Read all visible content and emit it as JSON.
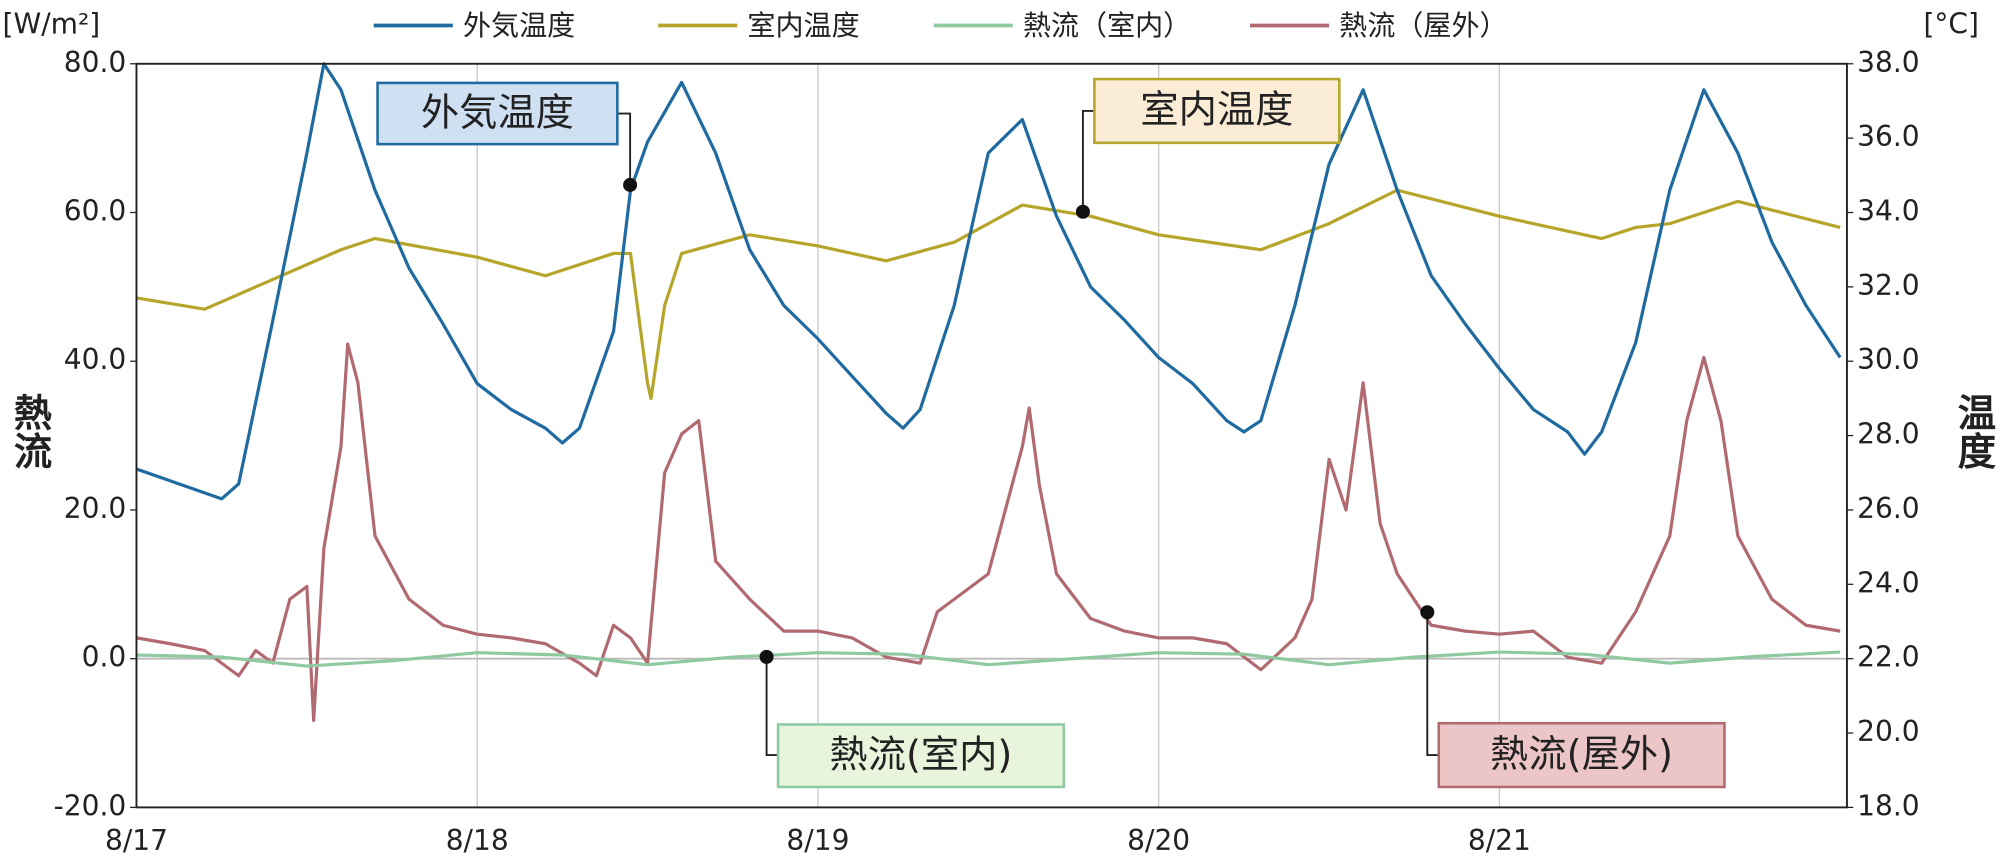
{
  "chart_data": {
    "type": "line",
    "ylabel": "熱流",
    "ylabel_unit": "[W/m²]",
    "y2label": "温度",
    "y2label_unit": "[°C]",
    "legend": "top",
    "grid": true,
    "xlim": [
      0,
      5.02
    ],
    "xticks": [
      {
        "value": 0,
        "label": "8/17"
      },
      {
        "value": 1,
        "label": "8/18"
      },
      {
        "value": 2,
        "label": "8/19"
      },
      {
        "value": 3,
        "label": "8/20"
      },
      {
        "value": 4,
        "label": "8/21"
      }
    ],
    "ylim": [
      -20,
      80
    ],
    "yticks": [
      {
        "value": -20,
        "label": "-20.0"
      },
      {
        "value": 0,
        "label": "0.0"
      },
      {
        "value": 20,
        "label": "20.0"
      },
      {
        "value": 40,
        "label": "40.0"
      },
      {
        "value": 60,
        "label": "60.0"
      },
      {
        "value": 80,
        "label": "80.0"
      }
    ],
    "y2lim": [
      18,
      38
    ],
    "y2ticks": [
      {
        "value": 18,
        "label": "18.0"
      },
      {
        "value": 20,
        "label": "20.0"
      },
      {
        "value": 22,
        "label": "22.0"
      },
      {
        "value": 24,
        "label": "24.0"
      },
      {
        "value": 26,
        "label": "26.0"
      },
      {
        "value": 28,
        "label": "28.0"
      },
      {
        "value": 30,
        "label": "30.0"
      },
      {
        "value": 32,
        "label": "32.0"
      },
      {
        "value": 34,
        "label": "34.0"
      },
      {
        "value": 36,
        "label": "36.0"
      },
      {
        "value": 38,
        "label": "38.0"
      }
    ],
    "series": [
      {
        "name": "外気温度",
        "callout": "外気温度",
        "color": "#1f6aa0",
        "axis": "y2",
        "x": [
          0,
          0.25,
          0.3,
          0.4,
          0.5,
          0.55,
          0.6,
          0.7,
          0.8,
          0.9,
          1.0,
          1.1,
          1.2,
          1.25,
          1.3,
          1.4,
          1.45,
          1.5,
          1.6,
          1.7,
          1.8,
          1.9,
          2.0,
          2.1,
          2.2,
          2.25,
          2.3,
          2.4,
          2.5,
          2.6,
          2.7,
          2.8,
          2.9,
          3.0,
          3.1,
          3.2,
          3.25,
          3.3,
          3.4,
          3.5,
          3.6,
          3.7,
          3.8,
          3.9,
          4.0,
          4.1,
          4.2,
          4.25,
          4.3,
          4.4,
          4.5,
          4.6,
          4.7,
          4.8,
          4.9,
          5.0
        ],
        "values": [
          27.1,
          26.3,
          26.7,
          31.1,
          35.6,
          38.0,
          37.3,
          34.6,
          32.5,
          31.0,
          29.4,
          28.7,
          28.2,
          27.8,
          28.2,
          30.8,
          34.6,
          35.9,
          37.5,
          35.6,
          33.0,
          31.5,
          30.6,
          29.6,
          28.6,
          28.2,
          28.7,
          31.5,
          35.6,
          36.5,
          33.9,
          32.0,
          31.1,
          30.1,
          29.4,
          28.4,
          28.1,
          28.4,
          31.5,
          35.3,
          37.3,
          34.6,
          32.3,
          31.0,
          29.8,
          28.7,
          28.1,
          27.5,
          28.1,
          30.5,
          34.6,
          37.3,
          35.6,
          33.2,
          31.5,
          30.1
        ]
      },
      {
        "name": "室内温度",
        "callout": "室内温度",
        "color": "#b5a52a",
        "axis": "y2",
        "x": [
          0,
          0.2,
          0.4,
          0.6,
          0.7,
          1.0,
          1.2,
          1.4,
          1.45,
          1.5,
          1.51,
          1.55,
          1.6,
          1.8,
          2.0,
          2.2,
          2.4,
          2.6,
          2.8,
          3.0,
          3.3,
          3.5,
          3.7,
          4.0,
          4.3,
          4.4,
          4.5,
          4.7,
          5.0
        ],
        "values": [
          31.7,
          31.4,
          32.2,
          33.0,
          33.3,
          32.8,
          32.3,
          32.9,
          32.9,
          29.4,
          29.0,
          31.5,
          32.9,
          33.4,
          33.1,
          32.7,
          33.2,
          34.2,
          33.9,
          33.4,
          33.0,
          33.7,
          34.6,
          33.9,
          33.3,
          33.6,
          33.7,
          34.3,
          33.6
        ]
      },
      {
        "name": "熱流（室内）",
        "callout": "熱流(室内)",
        "color": "#8fc9a0",
        "x": [
          0,
          0.25,
          0.5,
          0.75,
          1.0,
          1.25,
          1.5,
          1.75,
          2.0,
          2.25,
          2.5,
          2.75,
          3.0,
          3.25,
          3.5,
          3.75,
          4.0,
          4.25,
          4.5,
          4.75,
          5.0
        ],
        "values": [
          0.5,
          0.2,
          -1.0,
          -0.3,
          0.8,
          0.5,
          -0.8,
          0.2,
          0.8,
          0.6,
          -0.8,
          0.0,
          0.8,
          0.6,
          -0.8,
          0.2,
          0.9,
          0.6,
          -0.6,
          0.3,
          0.9
        ]
      },
      {
        "name": "熱流（屋外）",
        "callout": "熱流(屋外)",
        "color": "#b06a70",
        "x": [
          0,
          0.1,
          0.2,
          0.3,
          0.35,
          0.4,
          0.45,
          0.5,
          0.52,
          0.55,
          0.6,
          0.62,
          0.65,
          0.7,
          0.8,
          0.9,
          1.0,
          1.1,
          1.2,
          1.3,
          1.35,
          1.4,
          1.45,
          1.5,
          1.55,
          1.6,
          1.65,
          1.7,
          1.8,
          1.9,
          2.0,
          2.1,
          2.2,
          2.3,
          2.35,
          2.4,
          2.5,
          2.55,
          2.6,
          2.62,
          2.65,
          2.7,
          2.8,
          2.9,
          3.0,
          3.1,
          3.2,
          3.3,
          3.4,
          3.45,
          3.5,
          3.55,
          3.6,
          3.65,
          3.7,
          3.8,
          3.9,
          4.0,
          4.1,
          4.2,
          4.3,
          4.4,
          4.5,
          4.55,
          4.6,
          4.65,
          4.7,
          4.8,
          4.9,
          5.0
        ],
        "values": [
          2.8,
          2.0,
          1.1,
          -2.3,
          1.1,
          -0.6,
          8.0,
          9.7,
          -8.3,
          14.8,
          28.5,
          42.3,
          37.1,
          16.5,
          8.0,
          4.5,
          3.3,
          2.8,
          2.0,
          -0.6,
          -2.3,
          4.5,
          2.8,
          -0.6,
          25.0,
          30.2,
          32.0,
          13.1,
          8.0,
          3.7,
          3.7,
          2.8,
          0.2,
          -0.6,
          6.3,
          8.0,
          11.4,
          20.0,
          28.5,
          33.7,
          23.3,
          11.4,
          5.4,
          3.7,
          2.8,
          2.8,
          2.0,
          -1.5,
          2.8,
          8.0,
          26.8,
          20.0,
          37.1,
          18.2,
          11.4,
          4.5,
          3.7,
          3.3,
          3.7,
          0.2,
          -0.6,
          6.3,
          16.5,
          32.0,
          40.5,
          32.0,
          16.5,
          8.0,
          4.5,
          3.7
        ]
      }
    ]
  }
}
